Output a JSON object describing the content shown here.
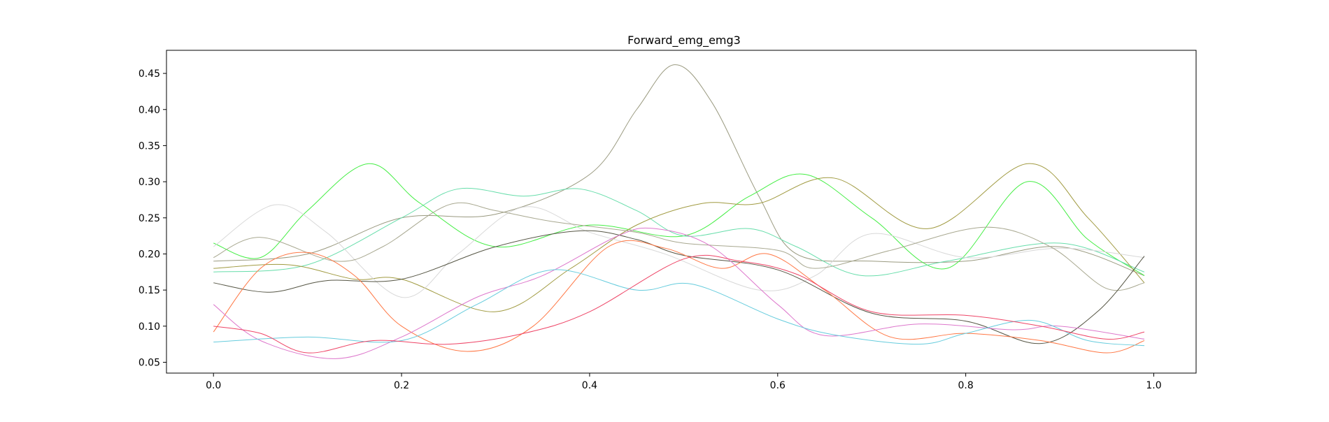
{
  "chart_data": {
    "type": "line",
    "title": "Forward_emg_emg3",
    "xlabel": "",
    "ylabel": "",
    "xlim": [
      -0.05,
      1.045
    ],
    "ylim": [
      0.035,
      0.482
    ],
    "xticks": [
      0.0,
      0.2,
      0.4,
      0.6,
      0.8,
      1.0
    ],
    "xtick_labels": [
      "0.0",
      "0.2",
      "0.4",
      "0.6",
      "0.8",
      "1.0"
    ],
    "yticks": [
      0.05,
      0.1,
      0.15,
      0.2,
      0.25,
      0.3,
      0.35,
      0.4,
      0.45
    ],
    "ytick_labels": [
      "0.05",
      "0.10",
      "0.15",
      "0.20",
      "0.25",
      "0.30",
      "0.35",
      "0.40",
      "0.45"
    ],
    "grid": false,
    "legend": "none",
    "series": [
      {
        "color": "#9a9a80",
        "x": [
          0,
          0.1,
          0.2,
          0.3,
          0.4,
          0.45,
          0.49,
          0.53,
          0.58,
          0.62,
          0.7,
          0.8,
          0.9,
          0.99
        ],
        "y": [
          0.19,
          0.2,
          0.25,
          0.255,
          0.31,
          0.4,
          0.462,
          0.41,
          0.28,
          0.2,
          0.19,
          0.19,
          0.21,
          0.17
        ]
      },
      {
        "color": "#44ee44",
        "x": [
          0,
          0.05,
          0.1,
          0.165,
          0.22,
          0.3,
          0.4,
          0.5,
          0.57,
          0.63,
          0.7,
          0.78,
          0.865,
          0.93,
          0.99
        ],
        "y": [
          0.215,
          0.195,
          0.26,
          0.325,
          0.27,
          0.21,
          0.24,
          0.225,
          0.28,
          0.31,
          0.25,
          0.18,
          0.3,
          0.22,
          0.17
        ]
      },
      {
        "color": "#66ddaa",
        "x": [
          0,
          0.1,
          0.2,
          0.26,
          0.33,
          0.39,
          0.45,
          0.5,
          0.57,
          0.62,
          0.69,
          0.78,
          0.9,
          0.99
        ],
        "y": [
          0.175,
          0.185,
          0.25,
          0.29,
          0.28,
          0.29,
          0.26,
          0.225,
          0.235,
          0.21,
          0.17,
          0.19,
          0.215,
          0.175
        ]
      },
      {
        "color": "#a09a40",
        "x": [
          0,
          0.08,
          0.15,
          0.2,
          0.3,
          0.38,
          0.45,
          0.52,
          0.58,
          0.66,
          0.76,
          0.866,
          0.93,
          0.99
        ],
        "y": [
          0.18,
          0.185,
          0.165,
          0.165,
          0.12,
          0.18,
          0.24,
          0.27,
          0.27,
          0.305,
          0.235,
          0.325,
          0.25,
          0.16
        ]
      },
      {
        "color": "#d8d8d8",
        "x": [
          0,
          0.065,
          0.12,
          0.2,
          0.26,
          0.33,
          0.4,
          0.48,
          0.58,
          0.64,
          0.7,
          0.8,
          0.9,
          0.99
        ],
        "y": [
          0.21,
          0.268,
          0.23,
          0.14,
          0.2,
          0.265,
          0.23,
          0.2,
          0.15,
          0.17,
          0.228,
          0.195,
          0.208,
          0.195
        ]
      },
      {
        "color": "#a8a890",
        "x": [
          0,
          0.05,
          0.13,
          0.18,
          0.25,
          0.3,
          0.36,
          0.45,
          0.5,
          0.6,
          0.64,
          0.72,
          0.82,
          0.89,
          0.95,
          0.99
        ],
        "y": [
          0.195,
          0.223,
          0.19,
          0.21,
          0.268,
          0.26,
          0.245,
          0.23,
          0.215,
          0.205,
          0.18,
          0.205,
          0.237,
          0.21,
          0.152,
          0.16
        ]
      },
      {
        "color": "#555544",
        "x": [
          0,
          0.06,
          0.12,
          0.2,
          0.3,
          0.39,
          0.45,
          0.5,
          0.6,
          0.7,
          0.8,
          0.88,
          0.94,
          0.99
        ],
        "y": [
          0.16,
          0.147,
          0.163,
          0.165,
          0.21,
          0.232,
          0.22,
          0.198,
          0.178,
          0.118,
          0.107,
          0.076,
          0.12,
          0.197
        ]
      },
      {
        "color": "#ff7744",
        "x": [
          0,
          0.05,
          0.1,
          0.15,
          0.2,
          0.27,
          0.34,
          0.42,
          0.48,
          0.54,
          0.59,
          0.65,
          0.72,
          0.8,
          0.88,
          0.95,
          0.99
        ],
        "y": [
          0.092,
          0.18,
          0.202,
          0.17,
          0.1,
          0.065,
          0.1,
          0.21,
          0.208,
          0.18,
          0.2,
          0.15,
          0.085,
          0.09,
          0.08,
          0.063,
          0.08
        ]
      },
      {
        "color": "#dd77cc",
        "x": [
          0,
          0.05,
          0.13,
          0.2,
          0.28,
          0.35,
          0.43,
          0.47,
          0.53,
          0.6,
          0.65,
          0.75,
          0.85,
          0.9,
          0.99
        ],
        "y": [
          0.13,
          0.08,
          0.055,
          0.085,
          0.14,
          0.17,
          0.225,
          0.235,
          0.21,
          0.13,
          0.087,
          0.103,
          0.095,
          0.1,
          0.082
        ]
      },
      {
        "color": "#66ccdd",
        "x": [
          0,
          0.1,
          0.2,
          0.28,
          0.36,
          0.45,
          0.51,
          0.6,
          0.66,
          0.75,
          0.8,
          0.87,
          0.93,
          0.99
        ],
        "y": [
          0.078,
          0.085,
          0.08,
          0.13,
          0.178,
          0.15,
          0.158,
          0.11,
          0.088,
          0.075,
          0.09,
          0.108,
          0.08,
          0.073
        ]
      },
      {
        "color": "#ee4466",
        "x": [
          0,
          0.05,
          0.1,
          0.17,
          0.25,
          0.33,
          0.4,
          0.5,
          0.56,
          0.62,
          0.7,
          0.8,
          0.88,
          0.95,
          0.99
        ],
        "y": [
          0.1,
          0.09,
          0.063,
          0.08,
          0.075,
          0.09,
          0.12,
          0.193,
          0.19,
          0.172,
          0.12,
          0.115,
          0.1,
          0.082,
          0.092
        ]
      }
    ]
  }
}
